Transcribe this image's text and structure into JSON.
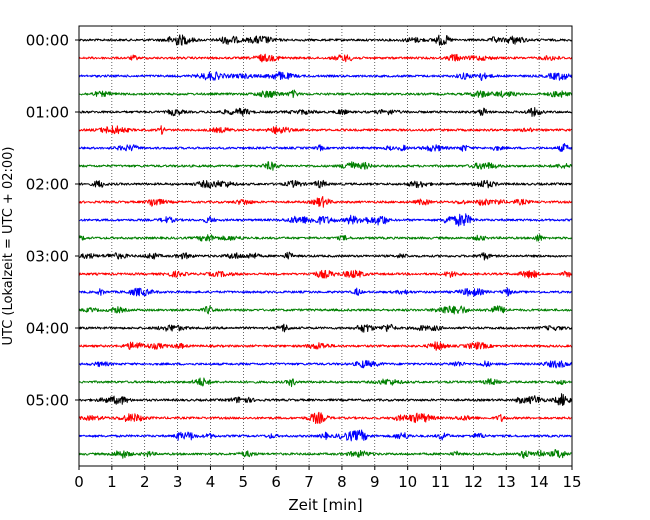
{
  "chart_data": {
    "type": "line",
    "title": "",
    "xlabel": "Zeit  [min]",
    "ylabel": "UTC (Lokalzeit = UTC + 02:00)",
    "xlim": [
      0,
      15
    ],
    "x_ticks": [
      "0",
      "1",
      "2",
      "3",
      "4",
      "5",
      "6",
      "7",
      "8",
      "9",
      "10",
      "11",
      "12",
      "13",
      "14",
      "15"
    ],
    "y_tick_labels": [
      "00:00",
      "01:00",
      "02:00",
      "03:00",
      "04:00",
      "05:00"
    ],
    "grid_x": true,
    "trace_count": 24,
    "trace_interval_min": 15,
    "trace_colors": [
      "#000000",
      "#ff0000",
      "#0000ff",
      "#008000"
    ]
  }
}
